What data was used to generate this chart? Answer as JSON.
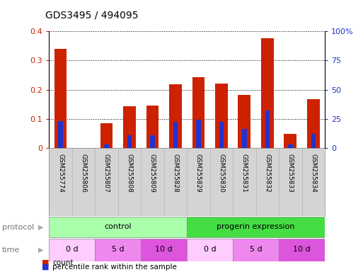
{
  "title": "GDS3495 / 494095",
  "samples": [
    "GSM255774",
    "GSM255806",
    "GSM255807",
    "GSM255808",
    "GSM255809",
    "GSM255828",
    "GSM255829",
    "GSM255830",
    "GSM255831",
    "GSM255832",
    "GSM255833",
    "GSM255834"
  ],
  "red_values": [
    0.34,
    0.0,
    0.085,
    0.143,
    0.146,
    0.218,
    0.243,
    0.22,
    0.183,
    0.375,
    0.048,
    0.167
  ],
  "blue_values": [
    0.093,
    0.0,
    0.012,
    0.045,
    0.045,
    0.09,
    0.098,
    0.09,
    0.065,
    0.128,
    0.012,
    0.05
  ],
  "ylim_left": [
    0,
    0.4
  ],
  "ylim_right": [
    0,
    100
  ],
  "yticks_left": [
    0.0,
    0.1,
    0.2,
    0.3,
    0.4
  ],
  "ytick_labels_left": [
    "0",
    "0.1",
    "0.2",
    "0.3",
    "0.4"
  ],
  "yticks_right": [
    0,
    25,
    50,
    75,
    100
  ],
  "ytick_labels_right": [
    "0",
    "25",
    "50",
    "75",
    "100%"
  ],
  "bar_color": "#cc2200",
  "blue_color": "#2233cc",
  "bg_color": "#ffffff",
  "label_bg": "#d4d4d4",
  "protocol_control_color": "#aaffaa",
  "protocol_progerin_color": "#44dd44",
  "time_0d_color": "#ffccff",
  "time_5d_color": "#ee88ee",
  "time_10d_color": "#dd55dd",
  "time_0d_border": "#bbbbbb",
  "legend_count": "count",
  "legend_percentile": "percentile rank within the sample",
  "protocol_label": "protocol",
  "time_label": "time"
}
